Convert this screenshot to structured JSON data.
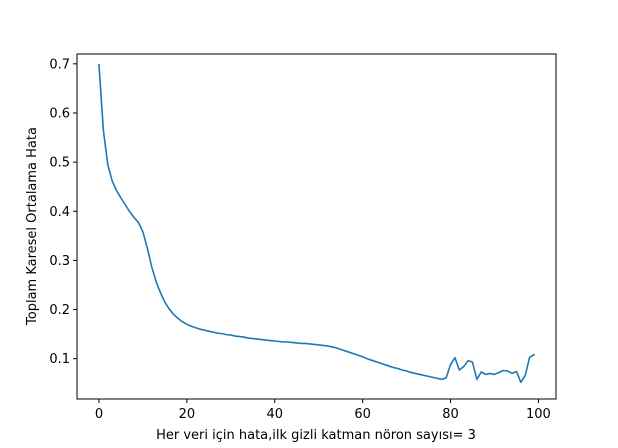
{
  "chart_data": {
    "type": "line",
    "title": "",
    "xlabel": "Her veri için hata,ilk gizli katman nöron sayısı= 3",
    "ylabel": "Toplam Karesel Ortalama Hata",
    "xlim": [
      -5,
      104
    ],
    "ylim": [
      0.018,
      0.72
    ],
    "xticks": [
      0,
      20,
      40,
      60,
      80,
      100
    ],
    "yticks": [
      0.1,
      0.2,
      0.3,
      0.4,
      0.5,
      0.6,
      0.7
    ],
    "xtick_labels": [
      "0",
      "20",
      "40",
      "60",
      "80",
      "100"
    ],
    "ytick_labels": [
      "0.1",
      "0.2",
      "0.3",
      "0.4",
      "0.5",
      "0.6",
      "0.7"
    ],
    "grid": false,
    "series": [
      {
        "color": "#1f77b4",
        "x": [
          0,
          1,
          2,
          3,
          4,
          5,
          6,
          7,
          8,
          9,
          10,
          11,
          12,
          13,
          14,
          15,
          16,
          17,
          18,
          19,
          20,
          21,
          22,
          23,
          24,
          25,
          26,
          27,
          28,
          29,
          30,
          31,
          32,
          33,
          34,
          35,
          36,
          37,
          38,
          39,
          40,
          41,
          42,
          43,
          44,
          45,
          46,
          47,
          48,
          49,
          50,
          51,
          52,
          53,
          54,
          55,
          56,
          57,
          58,
          59,
          60,
          61,
          62,
          63,
          64,
          65,
          66,
          67,
          68,
          69,
          70,
          71,
          72,
          73,
          74,
          75,
          76,
          77,
          78,
          79,
          80,
          81,
          82,
          83,
          84,
          85,
          86,
          87,
          88,
          89,
          90,
          91,
          92,
          93,
          94,
          95,
          96,
          97,
          98,
          99
        ],
        "y": [
          0.698,
          0.565,
          0.495,
          0.462,
          0.442,
          0.427,
          0.413,
          0.399,
          0.387,
          0.377,
          0.358,
          0.325,
          0.287,
          0.257,
          0.234,
          0.215,
          0.201,
          0.19,
          0.182,
          0.175,
          0.17,
          0.166,
          0.163,
          0.16,
          0.158,
          0.156,
          0.154,
          0.152,
          0.151,
          0.149,
          0.148,
          0.146,
          0.145,
          0.144,
          0.142,
          0.141,
          0.14,
          0.139,
          0.138,
          0.137,
          0.136,
          0.135,
          0.134,
          0.134,
          0.133,
          0.132,
          0.131,
          0.131,
          0.13,
          0.129,
          0.128,
          0.127,
          0.126,
          0.124,
          0.122,
          0.119,
          0.116,
          0.113,
          0.11,
          0.107,
          0.104,
          0.1,
          0.097,
          0.094,
          0.091,
          0.088,
          0.085,
          0.082,
          0.08,
          0.077,
          0.075,
          0.072,
          0.07,
          0.068,
          0.066,
          0.064,
          0.062,
          0.06,
          0.058,
          0.061,
          0.088,
          0.102,
          0.077,
          0.084,
          0.096,
          0.093,
          0.058,
          0.073,
          0.068,
          0.07,
          0.068,
          0.072,
          0.076,
          0.075,
          0.07,
          0.074,
          0.052,
          0.066,
          0.103,
          0.108
        ]
      }
    ]
  }
}
